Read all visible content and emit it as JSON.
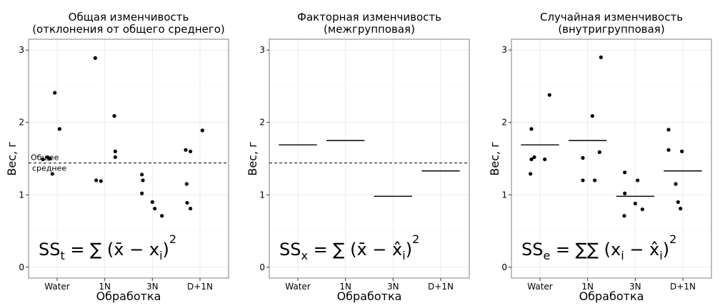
{
  "chart_data": [
    {
      "type": "scatter",
      "title_lines": [
        "Общая изменчивость",
        "(отклонения от общего среднего)"
      ],
      "xlabel": "Обработка",
      "ylabel": "Вес, г",
      "categories": [
        "Water",
        "1N",
        "3N",
        "D+1N"
      ],
      "yticks": [
        "0",
        "1",
        "2",
        "3"
      ],
      "ylim": [
        -0.15,
        3.15
      ],
      "grid": true,
      "grand_mean": 1.44,
      "grand_mean_label": [
        "Общее",
        "среднее"
      ],
      "points": [
        {
          "x": 0.7,
          "y": 1.49
        },
        {
          "x": 0.8,
          "y": 1.52
        },
        {
          "x": 0.85,
          "y": 1.5
        },
        {
          "x": 0.9,
          "y": 1.29
        },
        {
          "x": 0.95,
          "y": 2.41
        },
        {
          "x": 1.05,
          "y": 1.91
        },
        {
          "x": 1.8,
          "y": 2.89
        },
        {
          "x": 1.82,
          "y": 1.2
        },
        {
          "x": 1.92,
          "y": 1.19
        },
        {
          "x": 2.2,
          "y": 2.09
        },
        {
          "x": 2.22,
          "y": 1.6
        },
        {
          "x": 2.22,
          "y": 1.52
        },
        {
          "x": 2.78,
          "y": 1.28
        },
        {
          "x": 2.8,
          "y": 1.2
        },
        {
          "x": 2.78,
          "y": 1.02
        },
        {
          "x": 3.0,
          "y": 0.9
        },
        {
          "x": 3.05,
          "y": 0.81
        },
        {
          "x": 3.2,
          "y": 0.71
        },
        {
          "x": 3.7,
          "y": 1.62
        },
        {
          "x": 3.72,
          "y": 1.15
        },
        {
          "x": 3.73,
          "y": 0.89
        },
        {
          "x": 3.8,
          "y": 0.81
        },
        {
          "x": 3.8,
          "y": 1.6
        },
        {
          "x": 4.05,
          "y": 1.89
        }
      ],
      "formula": {
        "lhs": "SS",
        "sub": "t",
        "body": "(x̄ − x",
        "isub": "i",
        "close": ")",
        "sup": "2",
        "sums": 1
      }
    },
    {
      "type": "line",
      "title_lines": [
        "Факторная изменчивость",
        "(межгрупповая)"
      ],
      "xlabel": "Обработка",
      "ylabel": "Вес, г",
      "categories": [
        "Water",
        "1N",
        "3N",
        "D+1N"
      ],
      "yticks": [
        "0",
        "1",
        "2",
        "3"
      ],
      "ylim": [
        -0.15,
        3.15
      ],
      "grid": true,
      "grand_mean": 1.44,
      "group_means": [
        {
          "x0": 0.6,
          "x1": 1.4,
          "y": 1.69
        },
        {
          "x0": 1.6,
          "x1": 2.4,
          "y": 1.75
        },
        {
          "x0": 2.6,
          "x1": 3.4,
          "y": 0.98
        },
        {
          "x0": 3.6,
          "x1": 4.4,
          "y": 1.33
        }
      ],
      "formula": {
        "lhs": "SS",
        "sub": "x",
        "body": "(x̄ − x̂",
        "isub": "i",
        "close": ")",
        "sup": "2",
        "sums": 1
      }
    },
    {
      "type": "scatter",
      "title_lines": [
        "Случайная изменчивость",
        "(внутригрупповая)"
      ],
      "xlabel": "Обработка",
      "ylabel": "Вес, г",
      "categories": [
        "Water",
        "1N",
        "3N",
        "D+1N"
      ],
      "yticks": [
        "0",
        "1",
        "2",
        "3"
      ],
      "ylim": [
        -0.15,
        3.15
      ],
      "grid": true,
      "group_means": [
        {
          "x0": 0.6,
          "x1": 1.4,
          "y": 1.69
        },
        {
          "x0": 1.6,
          "x1": 2.4,
          "y": 1.75
        },
        {
          "x0": 2.6,
          "x1": 3.4,
          "y": 0.98
        },
        {
          "x0": 3.6,
          "x1": 4.4,
          "y": 1.33
        }
      ],
      "points": [
        {
          "x": 0.8,
          "y": 1.29
        },
        {
          "x": 0.82,
          "y": 1.91
        },
        {
          "x": 0.82,
          "y": 1.49
        },
        {
          "x": 0.88,
          "y": 1.52
        },
        {
          "x": 1.1,
          "y": 1.49
        },
        {
          "x": 1.2,
          "y": 2.38
        },
        {
          "x": 1.9,
          "y": 1.51
        },
        {
          "x": 1.9,
          "y": 1.2
        },
        {
          "x": 2.1,
          "y": 2.09
        },
        {
          "x": 2.15,
          "y": 1.2
        },
        {
          "x": 2.25,
          "y": 1.59
        },
        {
          "x": 2.28,
          "y": 2.9
        },
        {
          "x": 2.77,
          "y": 0.71
        },
        {
          "x": 2.78,
          "y": 1.31
        },
        {
          "x": 2.78,
          "y": 1.02
        },
        {
          "x": 3.0,
          "y": 0.88
        },
        {
          "x": 3.05,
          "y": 1.2
        },
        {
          "x": 3.15,
          "y": 0.8
        },
        {
          "x": 3.7,
          "y": 1.9
        },
        {
          "x": 3.7,
          "y": 1.62
        },
        {
          "x": 3.85,
          "y": 1.15
        },
        {
          "x": 3.9,
          "y": 0.9
        },
        {
          "x": 3.95,
          "y": 0.81
        },
        {
          "x": 3.98,
          "y": 1.6
        }
      ],
      "formula": {
        "lhs": "SS",
        "sub": "e",
        "body": "(x",
        "isub": "i",
        "mid": " − x̂",
        "isub2": "i",
        "close": ")",
        "sup": "2",
        "sums": 2
      }
    }
  ]
}
